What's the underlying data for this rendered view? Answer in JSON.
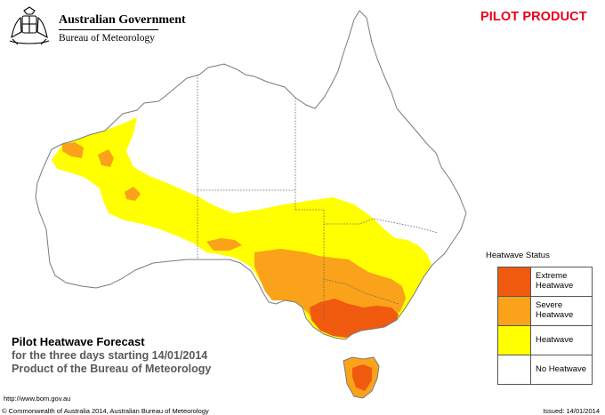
{
  "header": {
    "government": "Australian Government",
    "bureau": "Bureau of Meteorology",
    "pilot_badge": "PILOT PRODUCT"
  },
  "legend": {
    "title": "Heatwave Status",
    "items": [
      {
        "label": "Extreme\nHeatwave",
        "color": "#f05a0f"
      },
      {
        "label": "Severe\nHeatwave",
        "color": "#faa21a"
      },
      {
        "label": "Heatwave",
        "color": "#ffff00"
      },
      {
        "label": "No Heatwave",
        "color": "#ffffff"
      }
    ]
  },
  "title_block": {
    "title": "Pilot Heatwave Forecast",
    "subtitle": "for the three days starting 14/01/2014",
    "product": "Product of the Bureau of Meteorology"
  },
  "footer": {
    "url": "http://www.bom.gov.au",
    "copyright": "© Commonwealth of Australia 2014, Australian Bureau of Meteorology",
    "issued": "Issued: 14/01/2014"
  },
  "colors": {
    "extreme": "#f05a0f",
    "severe": "#faa21a",
    "heatwave": "#ffff00",
    "outline": "#7a7a7a",
    "badge": "#e8001c"
  }
}
